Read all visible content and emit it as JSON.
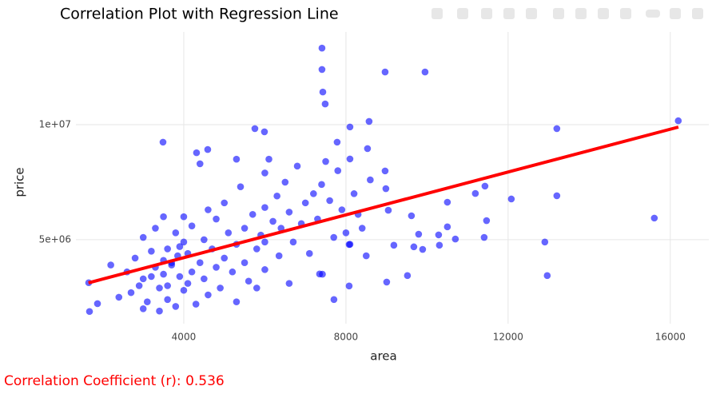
{
  "chart_data": {
    "type": "scatter",
    "title": "Correlation Plot with Regression Line",
    "x_label": "area",
    "y_label": "price",
    "xlim": [
      1340,
      16950
    ],
    "ylim": [
      1350000,
      14030000
    ],
    "xticks": [
      4000,
      8000,
      12000,
      16000
    ],
    "yticks": [
      {
        "value": 5000000,
        "label": "5e+06"
      },
      {
        "value": 10000000,
        "label": "1e+07"
      }
    ],
    "grid": true,
    "color": "#0000ff",
    "x": [
      7409,
      7409,
      7430,
      7488,
      8966,
      9951,
      16197,
      13202,
      15606,
      8571,
      8099,
      5754,
      5990,
      3488,
      4591,
      4315,
      13202,
      12079,
      11192,
      11429,
      11468,
      11409,
      12906,
      12965,
      10502,
      10502,
      10699,
      10305,
      10286,
      9793,
      9616,
      9892,
      9675,
      9517,
      9005,
      9182,
      9045,
      8985,
      8966,
      8532,
      8099,
      7783,
      8079,
      8079,
      7704,
      7350,
      1675,
      1655,
      1872,
      2400,
      2600,
      2800,
      3000,
      3000,
      3200,
      3300,
      3400,
      3500,
      3500,
      3600,
      3600,
      3600,
      3700,
      3800,
      3850,
      3900,
      4000,
      4000,
      4000,
      4100,
      4200,
      4200,
      4300,
      4400,
      4500,
      4500,
      4600,
      4700,
      4800,
      4800,
      4900,
      5000,
      5000,
      5100,
      5200,
      5300,
      5400,
      5500,
      5500,
      5600,
      5700,
      5800,
      5900,
      6000,
      6000,
      6000,
      6000,
      6100,
      6200,
      6300,
      6350,
      6400,
      6500,
      6600,
      6600,
      6700,
      6800,
      6900,
      7000,
      7100,
      7200,
      7300,
      7400,
      7420,
      7500,
      7600,
      7700,
      7800,
      7900,
      8000,
      8100,
      8200,
      8300,
      8400,
      8500,
      8600,
      2200,
      2700,
      3100,
      3400,
      3800,
      4600,
      5300,
      5800,
      4400,
      5300,
      3000,
      3300,
      3500,
      2900,
      3200,
      3700,
      3900,
      4100
    ],
    "y": [
      13330000,
      12400000,
      11420000,
      10900000,
      12290000,
      12290000,
      10170000,
      9830000,
      5940000,
      10140000,
      9900000,
      9830000,
      9690000,
      9240000,
      8920000,
      8780000,
      6910000,
      6770000,
      7010000,
      7330000,
      5830000,
      5100000,
      4900000,
      3440000,
      6630000,
      5560000,
      5030000,
      4760000,
      5210000,
      5240000,
      6040000,
      4580000,
      4690000,
      3440000,
      3160000,
      4760000,
      6280000,
      7220000,
      7990000,
      8960000,
      8510000,
      9240000,
      4790000,
      2990000,
      2400000,
      3510000,
      1880000,
      3130000,
      2220000,
      2500000,
      3600000,
      4200000,
      3300000,
      2000000,
      4500000,
      3800000,
      2900000,
      4100000,
      3500000,
      3000000,
      2400000,
      4600000,
      3900000,
      5300000,
      4300000,
      3400000,
      2800000,
      4900000,
      6000000,
      4400000,
      3600000,
      5600000,
      2200000,
      4000000,
      5000000,
      3300000,
      6300000,
      4600000,
      3800000,
      5900000,
      2900000,
      4200000,
      6600000,
      5300000,
      3600000,
      4800000,
      7300000,
      5500000,
      4000000,
      3200000,
      6100000,
      4600000,
      5200000,
      7900000,
      6400000,
      4900000,
      3700000,
      8500000,
      5800000,
      6900000,
      4300000,
      5500000,
      7500000,
      6200000,
      3100000,
      4900000,
      8200000,
      5700000,
      6600000,
      4400000,
      7000000,
      5900000,
      7400000,
      3500000,
      8400000,
      6700000,
      5100000,
      8000000,
      6300000,
      5300000,
      4800000,
      7000000,
      6100000,
      5500000,
      4300000,
      7600000,
      3900000,
      2700000,
      2300000,
      1900000,
      2100000,
      2600000,
      2300000,
      2900000,
      8300000,
      8500000,
      5100000,
      5500000,
      6000000,
      3000000,
      3400000,
      4000000,
      4700000,
      3100000
    ],
    "regression_line": {
      "x": [
        1650,
        16200
      ],
      "y": [
        3125000,
        9896000
      ],
      "color": "#ff0000"
    },
    "annotation": "Correlation Coefficient (r): 0.536",
    "annotation_color": "#ff0000"
  }
}
